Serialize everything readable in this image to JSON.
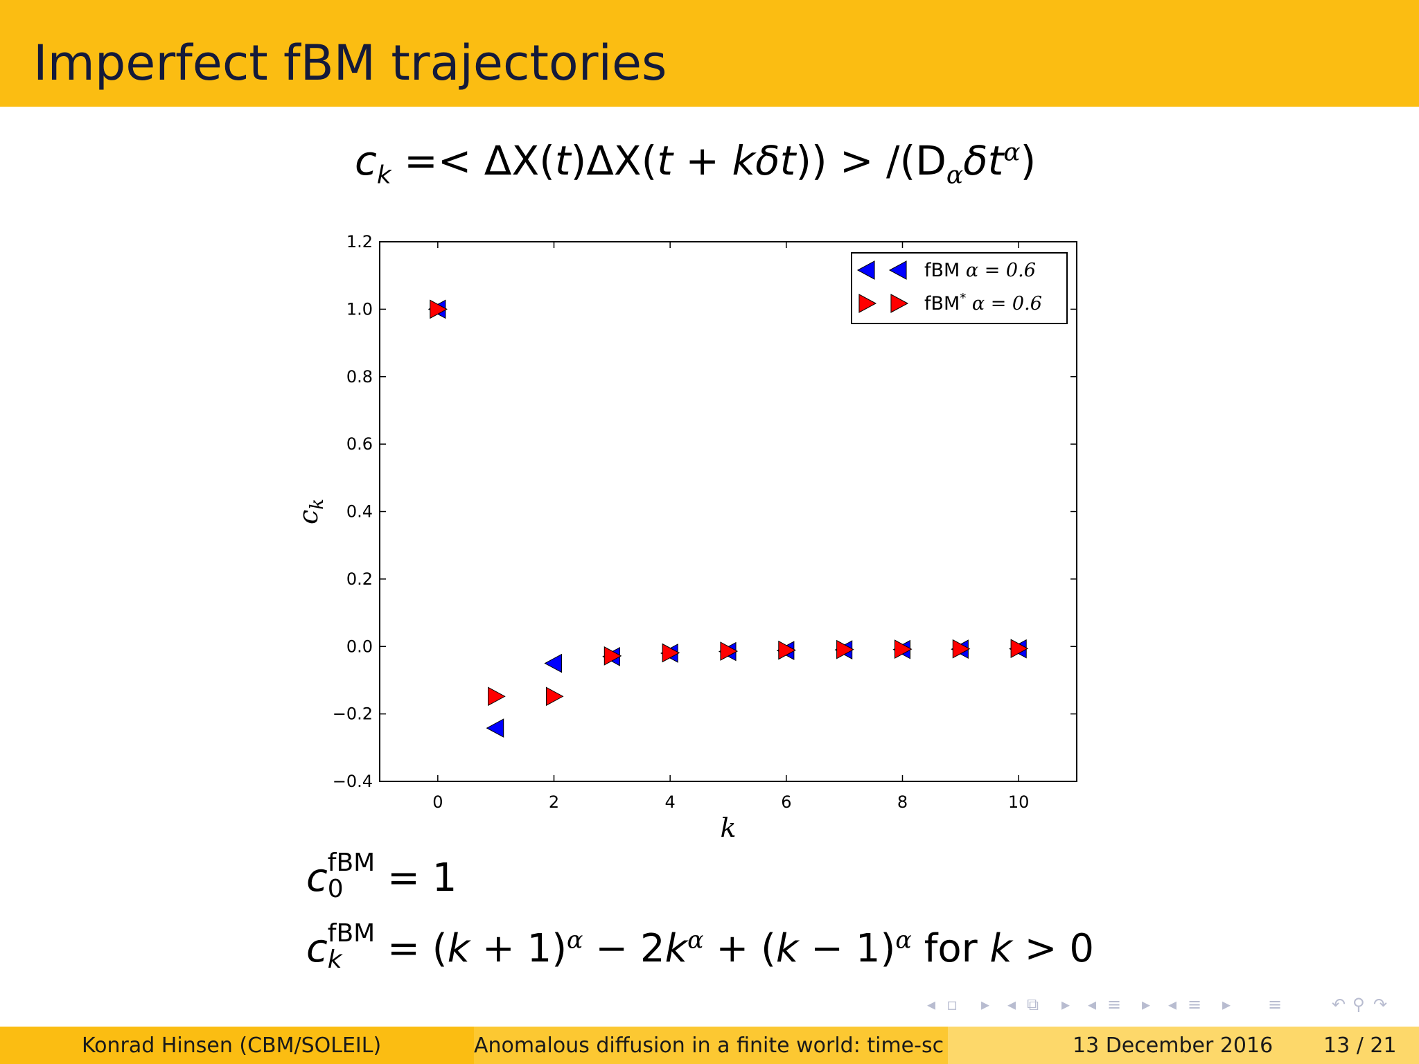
{
  "header": {
    "title": "Imperfect fBM trajectories"
  },
  "formula_top": {
    "lhs": "c",
    "lhs_sub": "k",
    "eq": " =< ΔX(",
    "t1": "t",
    "mid": ")ΔX(",
    "t2": "t",
    "plus": " + ",
    "k": "k",
    "delta_t": "δt",
    "close": ")) > /(D",
    "alpha": "α",
    "delta_t2": "δt",
    "alpha_sup": "α",
    "end": ")"
  },
  "formula_c0": {
    "c": "c",
    "sup": "fBM",
    "sub": "0",
    "rhs": " = 1"
  },
  "formula_ck": {
    "c": "c",
    "sup": "fBM",
    "sub": "k",
    "part1": " = (",
    "k1": "k",
    "part2": " + 1)",
    "a1": "α",
    "part3": " − 2",
    "k2": "k",
    "a2": "α",
    "part4": " + (",
    "k3": "k",
    "part5": " − 1)",
    "a3": "α",
    "part6": " for ",
    "k4": "k",
    "part7": " > 0"
  },
  "chart_data": {
    "type": "scatter",
    "xlabel": "k",
    "ylabel": "c_k",
    "xlim": [
      -1,
      11
    ],
    "ylim": [
      -0.4,
      1.2
    ],
    "xticks": [
      0,
      2,
      4,
      6,
      8,
      10
    ],
    "xtick_labels": [
      "0",
      "2",
      "4",
      "6",
      "8",
      "10"
    ],
    "yticks": [
      -0.4,
      -0.2,
      0.0,
      0.2,
      0.4,
      0.6,
      0.8,
      1.0,
      1.2
    ],
    "ytick_labels": [
      "−0.4",
      "−0.2",
      "0.0",
      "0.2",
      "0.4",
      "0.6",
      "0.8",
      "1.0",
      "1.2"
    ],
    "legend_placement": "top-right",
    "grid": false,
    "series": [
      {
        "name": "fBM",
        "label_math": "α = 0.6",
        "marker": "triangle-left",
        "color": "#0000ff",
        "x": [
          0,
          1,
          2,
          3,
          4,
          5,
          6,
          7,
          8,
          9,
          10
        ],
        "y": [
          1.0,
          -0.242,
          -0.05,
          -0.03,
          -0.02,
          -0.015,
          -0.012,
          -0.01,
          -0.009,
          -0.008,
          -0.007
        ]
      },
      {
        "name": "fBM*",
        "label_math": "α = 0.6",
        "marker": "triangle-right",
        "color": "#ff0000",
        "x": [
          0,
          1,
          2,
          3,
          4,
          5,
          6,
          7,
          8,
          9,
          10
        ],
        "y": [
          1.0,
          -0.148,
          -0.148,
          -0.028,
          -0.019,
          -0.014,
          -0.011,
          -0.009,
          -0.008,
          -0.007,
          -0.006
        ]
      }
    ]
  },
  "navigation": {
    "prev": "◂",
    "frame": "▫",
    "next": "▸",
    "sub_prev": "◂",
    "sub": "⧉",
    "sub_next": "▸",
    "sec_prev": "◂",
    "sec": "≡",
    "sec_next": "▸",
    "subsec_prev": "◂",
    "subsec": "≡",
    "subsec_next": "▸",
    "toc": "≡",
    "undo": "↶",
    "search": "⚲",
    "redo": "↷"
  },
  "footer": {
    "author": "Konrad Hinsen  (CBM/SOLEIL)",
    "talk": "Anomalous diffusion in a finite world: time-sc",
    "date": "13 December 2016",
    "page": "13 / 21"
  }
}
